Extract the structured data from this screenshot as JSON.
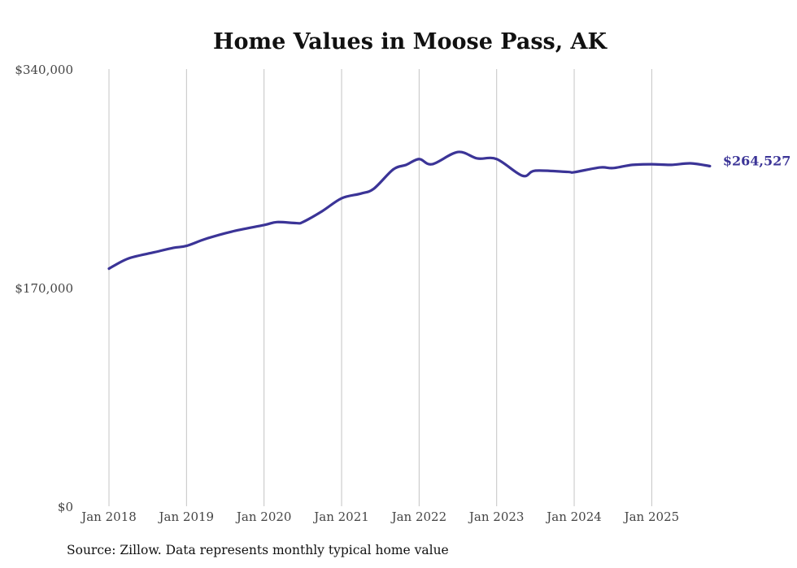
{
  "chart_data": {
    "type": "line",
    "title": "Home Values in Moose Pass, AK",
    "xlabel": "",
    "ylabel": "",
    "ylim": [
      0,
      340000
    ],
    "y_ticks": [
      0,
      170000,
      340000
    ],
    "y_tick_labels": [
      "$0",
      "$170,000",
      "$340,000"
    ],
    "x_ticks": [
      "2018-01",
      "2019-01",
      "2020-01",
      "2021-01",
      "2022-01",
      "2023-01",
      "2024-01",
      "2025-01"
    ],
    "x_tick_labels": [
      "Jan 2018",
      "Jan 2019",
      "Jan 2020",
      "Jan 2021",
      "Jan 2022",
      "Jan 2023",
      "Jan 2024",
      "Jan 2025"
    ],
    "grid": "vertical",
    "series": [
      {
        "name": "Typical home value",
        "color": "#3b3497",
        "points": [
          [
            "2018-01",
            184800
          ],
          [
            "2018-04",
            192700
          ],
          [
            "2018-08",
            197500
          ],
          [
            "2018-11",
            201000
          ],
          [
            "2019-01",
            202500
          ],
          [
            "2019-04",
            208000
          ],
          [
            "2019-08",
            213600
          ],
          [
            "2020-01",
            218700
          ],
          [
            "2020-03",
            221000
          ],
          [
            "2020-06",
            220200
          ],
          [
            "2020-07",
            221000
          ],
          [
            "2020-10",
            229500
          ],
          [
            "2021-01",
            239500
          ],
          [
            "2021-04",
            243200
          ],
          [
            "2021-06",
            247000
          ],
          [
            "2021-09",
            262000
          ],
          [
            "2021-11",
            265500
          ],
          [
            "2022-01",
            270000
          ],
          [
            "2022-03",
            266000
          ],
          [
            "2022-07",
            275500
          ],
          [
            "2022-10",
            270500
          ],
          [
            "2023-01",
            270000
          ],
          [
            "2023-05",
            257000
          ],
          [
            "2023-07",
            261000
          ],
          [
            "2023-12",
            260000
          ],
          [
            "2024-01",
            259800
          ],
          [
            "2024-05",
            263500
          ],
          [
            "2024-07",
            263000
          ],
          [
            "2024-10",
            265500
          ],
          [
            "2025-01",
            266000
          ],
          [
            "2025-04",
            265500
          ],
          [
            "2025-07",
            266700
          ],
          [
            "2025-10",
            264527
          ]
        ]
      }
    ],
    "end_label": "$264,527"
  },
  "source": "Source: Zillow. Data represents monthly typical home value"
}
